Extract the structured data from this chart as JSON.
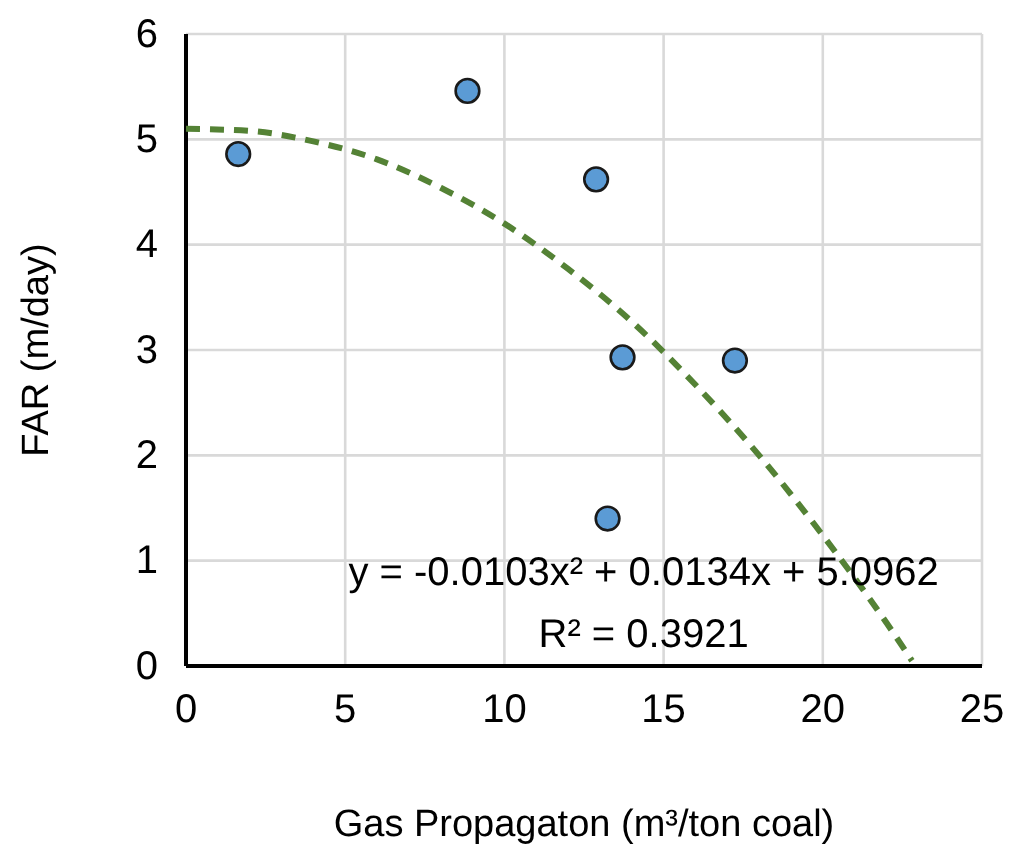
{
  "chart_data": {
    "type": "scatter",
    "xlabel": "Gas Propagaton (m³/ton coal)",
    "ylabel": "FAR (m/day)",
    "xlim": [
      0,
      25
    ],
    "xticks": [
      0,
      5,
      10,
      15,
      20,
      25
    ],
    "ylim": [
      0,
      6
    ],
    "yticks": [
      0,
      1,
      2,
      3,
      4,
      5,
      6
    ],
    "grid": true,
    "marker": "circle",
    "annotations": [
      "y = -0.0103x² + 0.0134x + 5.0962",
      "R² = 0.3921"
    ],
    "series": [
      {
        "color": "#5b9bd5",
        "x": [
          1.64,
          8.84,
          12.88,
          13.71,
          13.24,
          17.24
        ],
        "values": [
          4.86,
          5.46,
          4.62,
          2.93,
          1.4,
          2.9
        ]
      },
      {
        "type": "line",
        "color": "#548235",
        "line_style": "dashed",
        "marker": "none",
        "x": [
          0,
          2,
          4,
          6,
          8,
          10,
          12,
          14,
          16,
          18,
          20,
          22,
          22.8
        ],
        "values": [
          5.1,
          5.08,
          4.98,
          4.81,
          4.54,
          4.2,
          3.77,
          3.27,
          2.67,
          2.0,
          1.24,
          0.41,
          0.05
        ]
      }
    ]
  }
}
